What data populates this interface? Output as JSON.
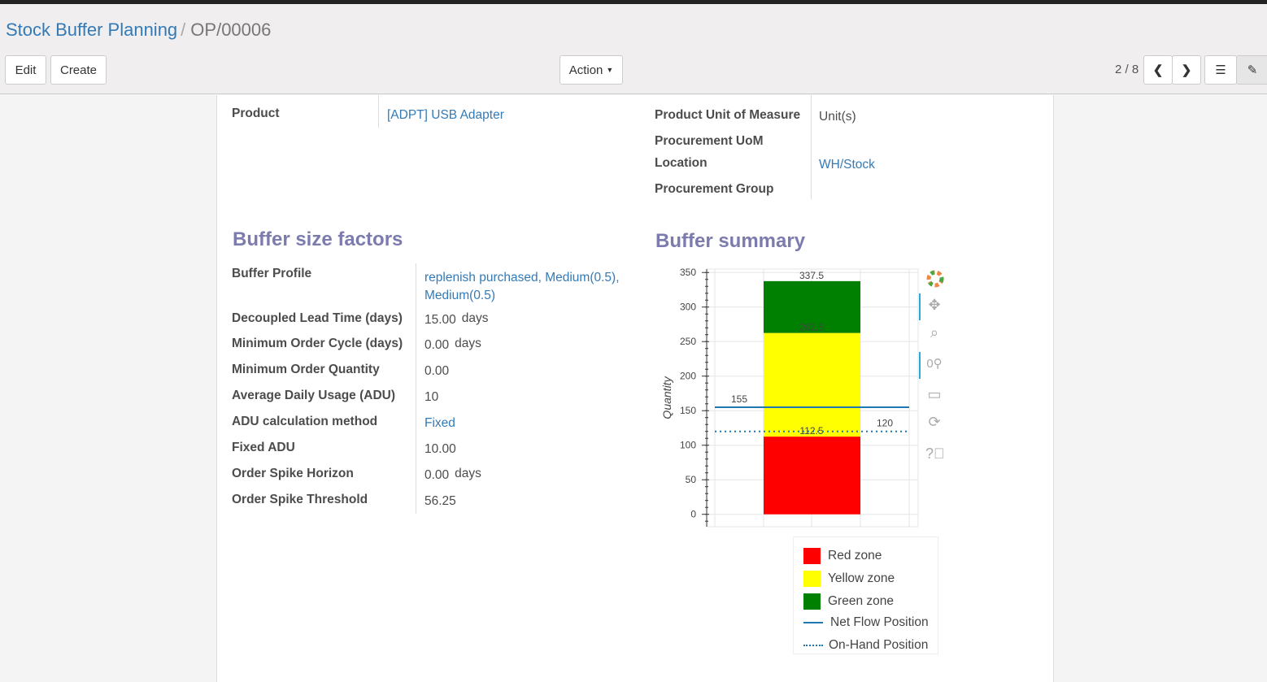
{
  "breadcrumb": {
    "parent": "Stock Buffer Planning",
    "current": "OP/00006"
  },
  "toolbar": {
    "edit": "Edit",
    "create": "Create",
    "action": "Action",
    "pager": "2 / 8"
  },
  "fields_top": {
    "product_label": "Product",
    "product_value": "[ADPT] USB Adapter",
    "uom_label": "Product Unit of Measure",
    "uom_value": "Unit(s)",
    "proc_uom_label": "Procurement UoM",
    "location_label": "Location",
    "location_value": "WH/Stock",
    "proc_group_label": "Procurement Group"
  },
  "buffer_factors": {
    "title": "Buffer size factors",
    "rows": [
      {
        "label": "Buffer Profile",
        "value": "replenish purchased, Medium(0.5), Medium(0.5)",
        "unit": "",
        "link": true
      },
      {
        "label": "Decoupled Lead Time (days)",
        "value": "15.00",
        "unit": "days"
      },
      {
        "label": "Minimum Order Cycle (days)",
        "value": "0.00",
        "unit": "days"
      },
      {
        "label": "Minimum Order Quantity",
        "value": "0.00",
        "unit": ""
      },
      {
        "label": "Average Daily Usage (ADU)",
        "value": "10",
        "unit": ""
      },
      {
        "label": "ADU calculation method",
        "value": "Fixed",
        "unit": "",
        "link": true
      },
      {
        "label": "Fixed ADU",
        "value": "10.00",
        "unit": ""
      },
      {
        "label": "Order Spike Horizon",
        "value": "0.00",
        "unit": "days"
      },
      {
        "label": "Order Spike Threshold",
        "value": "56.25",
        "unit": ""
      }
    ]
  },
  "buffer_summary": {
    "title": "Buffer summary"
  },
  "chart_data": {
    "type": "bar",
    "stacked": true,
    "ylabel": "Quantity",
    "ylim": [
      -18,
      355
    ],
    "yticks": [
      0,
      50,
      100,
      150,
      200,
      250,
      300,
      350
    ],
    "grid": true,
    "series": [
      {
        "name": "Red zone",
        "from": 0,
        "to": 112.5,
        "color": "#ff0000",
        "label": "112.5"
      },
      {
        "name": "Yellow zone",
        "from": 112.5,
        "to": 262.5,
        "color": "#ffff00",
        "label": "262.5"
      },
      {
        "name": "Green zone",
        "from": 262.5,
        "to": 337.5,
        "color": "#008000",
        "label": "337.5"
      }
    ],
    "lines": [
      {
        "name": "Net Flow Position",
        "value": 155,
        "style": "solid",
        "color": "#1f77b4",
        "label": "155"
      },
      {
        "name": "On-Hand Position",
        "value": 120,
        "style": "dotted",
        "color": "#1f77b4",
        "label": "120"
      }
    ],
    "legend_position": "bottom-right"
  }
}
